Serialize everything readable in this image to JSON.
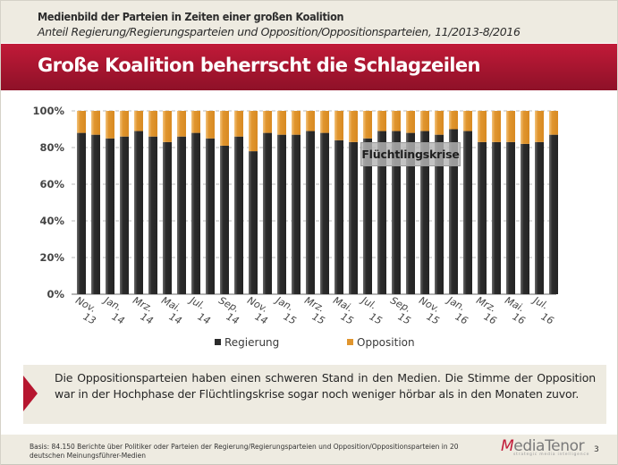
{
  "header": {
    "title": "Medienbild der Parteien in Zeiten einer großen Koalition",
    "subtitle": "Anteil Regierung/Regierungsparteien und Opposition/Oppositionsparteien, 11/2013-8/2016"
  },
  "banner": {
    "title": "Große Koalition beherrscht die Schlagzeilen"
  },
  "chart_data": {
    "type": "bar",
    "stacked": true,
    "percent": true,
    "title": "",
    "xlabel": "",
    "ylabel": "",
    "ylim": [
      0,
      100
    ],
    "yticks": [
      "0%",
      "20%",
      "40%",
      "60%",
      "80%",
      "100%"
    ],
    "grid": true,
    "legend_position": "bottom",
    "categories": [
      "Nov. 13",
      "Dez. 13",
      "Jan. 14",
      "Feb. 14",
      "Mrz. 14",
      "Apr. 14",
      "Mai. 14",
      "Jun. 14",
      "Jul. 14",
      "Aug. 14",
      "Sep. 14",
      "Okt. 14",
      "Nov. 14",
      "Dez. 14",
      "Jan. 15",
      "Feb. 15",
      "Mrz. 15",
      "Apr. 15",
      "Mai. 15",
      "Jun. 15",
      "Jul. 15",
      "Aug. 15",
      "Sep. 15",
      "Okt. 15",
      "Nov. 15",
      "Dez. 15",
      "Jan. 16",
      "Feb. 16",
      "Mrz. 16",
      "Apr. 16",
      "Mai. 16",
      "Jun. 16",
      "Jul. 16",
      "Aug. 16"
    ],
    "tick_labels": [
      "Nov. 13",
      "Jan. 14",
      "Mrz. 14",
      "Mai. 14",
      "Jul. 14",
      "Sep. 14",
      "Nov. 14",
      "Jan. 15",
      "Mrz. 15",
      "Mai. 15",
      "Jul. 15",
      "Sep. 15",
      "Nov. 15",
      "Jan. 16",
      "Mrz. 16",
      "Mai. 16",
      "Jul. 16"
    ],
    "series": [
      {
        "name": "Regierung",
        "color": "#2b2b2b",
        "values": [
          88,
          87,
          85,
          86,
          89,
          86,
          83,
          86,
          88,
          85,
          81,
          86,
          78,
          88,
          87,
          87,
          89,
          88,
          84,
          83,
          85,
          89,
          89,
          88,
          89,
          87,
          90,
          89,
          83,
          83,
          83,
          82,
          83,
          87
        ]
      },
      {
        "name": "Opposition",
        "color": "#e0952e",
        "values": [
          12,
          13,
          15,
          14,
          11,
          14,
          17,
          14,
          12,
          15,
          19,
          14,
          22,
          12,
          13,
          13,
          11,
          12,
          16,
          17,
          15,
          11,
          11,
          12,
          11,
          13,
          10,
          11,
          17,
          17,
          17,
          18,
          17,
          13
        ]
      }
    ],
    "annotations": [
      {
        "text": "Flüchtlingskrise",
        "near": "Jul. 15"
      }
    ]
  },
  "note": {
    "text": "Die Oppositionsparteien haben einen schweren Stand in den Medien. Die Stimme der Opposition war in der Hochphase der Flüchtlingskrise sogar noch weniger hörbar als in den Monaten zuvor."
  },
  "footer": {
    "basis": "Basis: 84.150 Berichte über Politiker oder Parteien der Regierung/Regierungsparteien und Opposition/Oppositionsparteien in 20 deutschen Meinungsführer-Medien",
    "logo_m": "M",
    "logo_rest": "ediaTenor",
    "logo_tagline": "strategic media intelligence",
    "page_number": "3"
  }
}
